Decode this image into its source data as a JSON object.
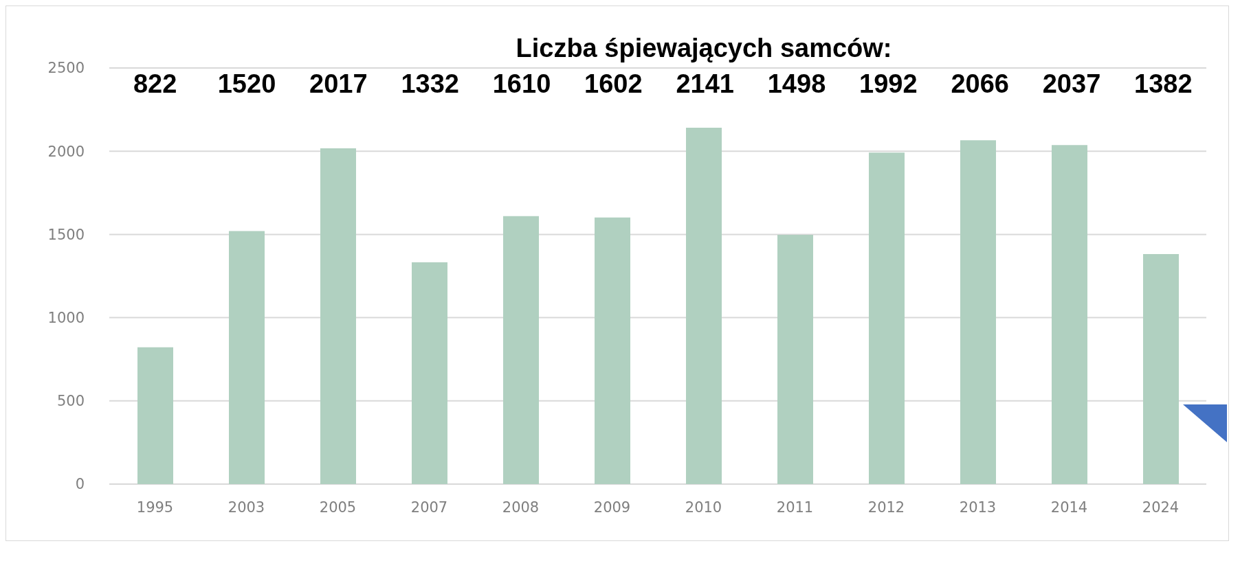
{
  "chart_data": {
    "type": "bar",
    "title": "Liczba śpiewających samców:",
    "categories": [
      "1995",
      "2003",
      "2005",
      "2007",
      "2008",
      "2009",
      "2010",
      "2011",
      "2012",
      "2013",
      "2014",
      "2024"
    ],
    "values": [
      822,
      1520,
      2017,
      1332,
      1610,
      1602,
      2141,
      1498,
      1992,
      2066,
      2037,
      1382
    ],
    "color": "#b0d0c0",
    "annotations": [
      "822",
      "1520",
      "2017",
      "1332",
      "1610",
      "1602",
      "2141",
      "1498",
      "1992",
      "2066",
      "2037",
      "1382"
    ],
    "ylim": [
      0,
      2500
    ],
    "yticks": [
      0,
      500,
      1000,
      1500,
      2000,
      2500
    ],
    "grid": "y"
  }
}
